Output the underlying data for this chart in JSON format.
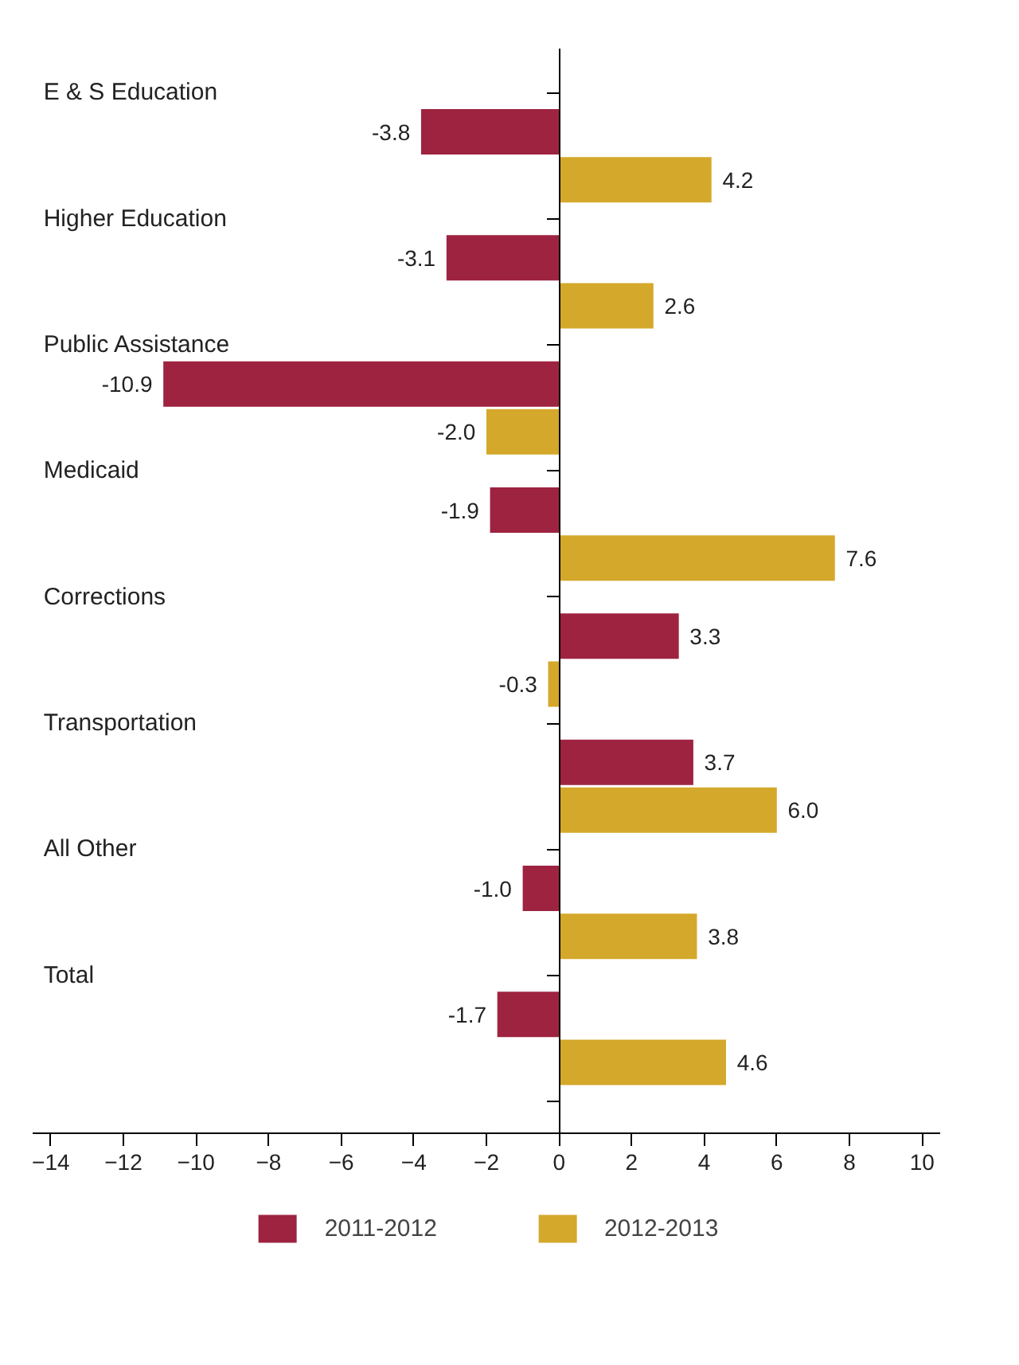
{
  "chart_data": {
    "type": "bar",
    "orientation": "horizontal",
    "categories": [
      "E & S Education",
      "Higher Education",
      "Public Assistance",
      "Medicaid",
      "Corrections",
      "Transportation",
      "All Other",
      "Total"
    ],
    "series": [
      {
        "name": "2011-2012",
        "color": "#9e2340",
        "values": [
          -3.8,
          -3.1,
          -10.9,
          -1.9,
          3.3,
          3.7,
          -1.0,
          -1.7
        ],
        "value_labels": [
          "-3.8",
          "-3.1",
          "-10.9",
          "-1.9",
          "3.3",
          "3.7",
          "-1.0",
          "-1.7"
        ]
      },
      {
        "name": "2012-2013",
        "color": "#d4a82a",
        "values": [
          4.2,
          2.6,
          -2.0,
          7.6,
          -0.3,
          6.0,
          3.8,
          4.6
        ],
        "value_labels": [
          "4.2",
          "2.6",
          "-2.0",
          "7.6",
          "-0.3",
          "6.0",
          "3.8",
          "4.6"
        ]
      }
    ],
    "xlim": [
      -14.5,
      10.5
    ],
    "xticks": [
      -14,
      -12,
      -10,
      -8,
      -6,
      -4,
      -2,
      0,
      2,
      4,
      6,
      8,
      10
    ],
    "tick_labels": "x",
    "legend": "bottom"
  }
}
